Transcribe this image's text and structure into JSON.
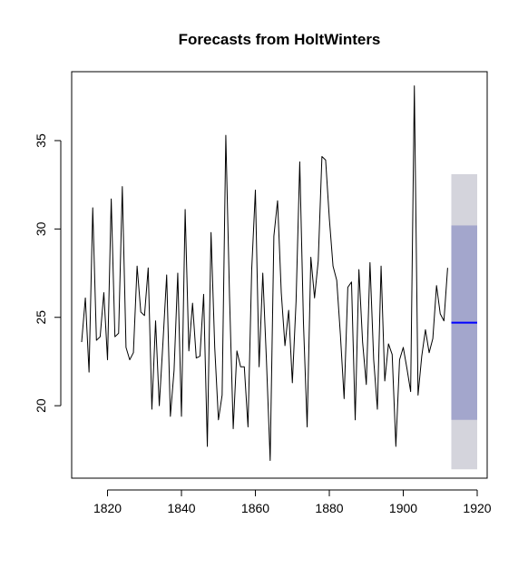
{
  "chart_data": {
    "type": "line",
    "title": "Forecasts from HoltWinters",
    "xlabel": "",
    "ylabel": "",
    "xlim": [
      1810.3,
      1922.7
    ],
    "ylim": [
      15.9,
      38.9
    ],
    "x_ticks": [
      1820,
      1840,
      1860,
      1880,
      1900,
      1920
    ],
    "y_ticks": [
      20,
      25,
      30,
      35
    ],
    "grid": false,
    "legend": "none",
    "series": [
      {
        "role": "observed",
        "color": "#000000",
        "x_start": 1813,
        "values": [
          23.6,
          26.1,
          21.9,
          31.2,
          23.7,
          23.9,
          26.4,
          22.6,
          31.7,
          23.9,
          24.1,
          32.4,
          23.3,
          22.6,
          23.0,
          27.9,
          25.3,
          25.1,
          27.8,
          19.8,
          24.8,
          20.0,
          23.6,
          27.4,
          19.4,
          22.0,
          27.5,
          19.4,
          31.1,
          23.1,
          25.8,
          22.7,
          22.8,
          26.3,
          17.7,
          29.8,
          23.3,
          19.2,
          20.6,
          35.3,
          26.2,
          18.7,
          23.1,
          22.2,
          22.2,
          18.8,
          27.7,
          32.2,
          22.2,
          27.5,
          22.5,
          16.9,
          29.6,
          31.6,
          26.4,
          23.4,
          25.4,
          21.3,
          25.9,
          33.8,
          24.7,
          18.8,
          28.4,
          26.1,
          28.2,
          34.1,
          33.9,
          30.6,
          27.9,
          27.1,
          24.0,
          20.4,
          26.7,
          27.0,
          19.2,
          27.7,
          23.6,
          21.2,
          28.1,
          22.6,
          19.8,
          27.9,
          21.4,
          23.5,
          22.9,
          17.7,
          22.6,
          23.3,
          22.1,
          20.8,
          38.1,
          20.6,
          22.8,
          24.3,
          23.0,
          23.8,
          26.8,
          25.2,
          24.8,
          27.8
        ]
      },
      {
        "role": "point-forecast",
        "color": "#0000ff",
        "x": [
          1913,
          1920
        ],
        "values": [
          24.7,
          24.7
        ]
      }
    ],
    "intervals": [
      {
        "level": 95,
        "color": "#d4d4dc",
        "x": [
          1913,
          1920
        ],
        "lower": 16.4,
        "upper": 33.1
      },
      {
        "level": 80,
        "color": "#a3a6cc",
        "x": [
          1913,
          1920
        ],
        "lower": 19.2,
        "upper": 30.2
      }
    ]
  }
}
